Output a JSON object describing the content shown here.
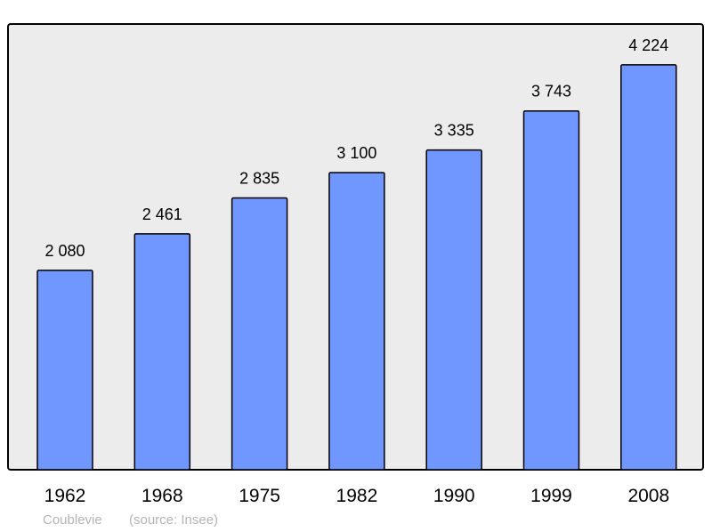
{
  "chart_data": {
    "type": "bar",
    "categories": [
      "1962",
      "1968",
      "1975",
      "1982",
      "1990",
      "1999",
      "2008"
    ],
    "values": [
      2080,
      2461,
      2835,
      3100,
      3335,
      3743,
      4224
    ],
    "value_labels": [
      "2 080",
      "2 461",
      "2 835",
      "3 100",
      "3 335",
      "3 743",
      "4 224"
    ],
    "title": "",
    "xlabel": "",
    "ylabel": "",
    "ylim": [
      0,
      4650
    ],
    "grid": false,
    "bar_color": "#7097ff",
    "background_color": "#ececec",
    "footer": {
      "place": "Coublevie",
      "source": "(source: Insee)"
    }
  }
}
